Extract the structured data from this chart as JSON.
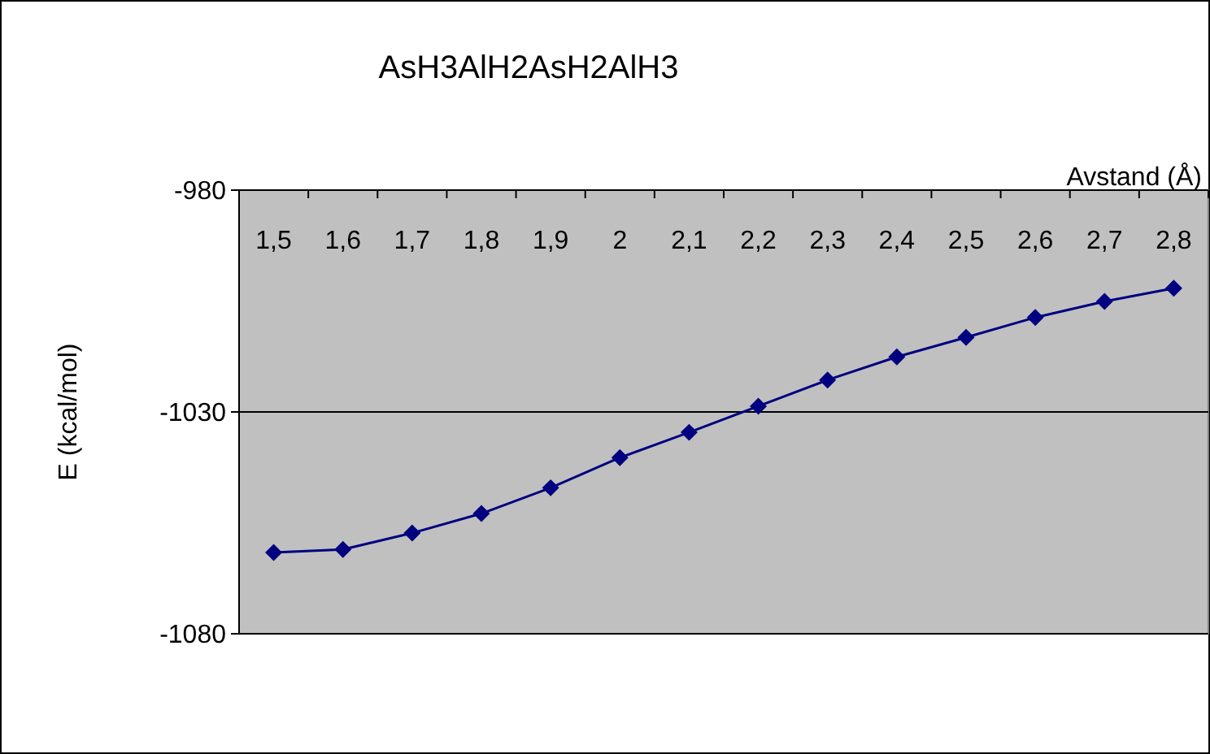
{
  "chart_data": {
    "type": "line",
    "title": "AsH3AlH2AsH2AlH3",
    "xlabel": "Avstand (Å)",
    "ylabel": "E (kcal/mol)",
    "categories": [
      "1,5",
      "1,6",
      "1,7",
      "1,8",
      "1,9",
      "2",
      "2,1",
      "2,2",
      "2,3",
      "2,4",
      "2,5",
      "2,6",
      "2,7",
      "2,8"
    ],
    "series": [
      {
        "color": "#000080",
        "values": [
          -1061.7,
          -1061,
          -1057.3,
          -1052.9,
          -1047.1,
          -1040.3,
          -1034.6,
          -1028.7,
          -1022.8,
          -1017.6,
          -1013.2,
          -1008.7,
          -1005.1,
          -1002.1
        ]
      }
    ],
    "ylim": [
      -1080,
      -980
    ],
    "yticks": [
      -1080,
      -1030,
      -980
    ],
    "grid": "y",
    "marker": "diamond"
  }
}
